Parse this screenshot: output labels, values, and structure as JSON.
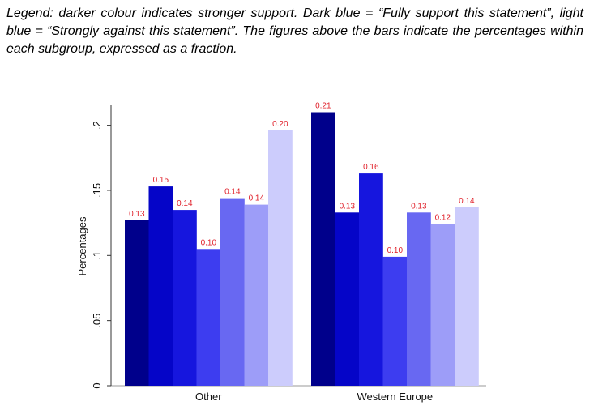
{
  "legend_note": "Legend: darker colour indicates stronger support. Dark blue = “Fully support this statement”, light blue = “Strongly against this statement”. The figures above the bars indicate the percentages within each subgroup, expressed as a fraction.",
  "chart_data": {
    "type": "bar",
    "ylabel": "Percentages",
    "ylim": [
      0,
      0.22
    ],
    "yticks": [
      {
        "value": 0,
        "label": "0"
      },
      {
        "value": 0.05,
        "label": ".05"
      },
      {
        "value": 0.1,
        "label": ".1"
      },
      {
        "value": 0.15,
        "label": ".15"
      },
      {
        "value": 0.2,
        "label": ".2"
      }
    ],
    "grid": false,
    "categories": [
      "Other",
      "Western Europe"
    ],
    "colors": [
      "#00008b",
      "#0505c8",
      "#1616de",
      "#3d3df0",
      "#6868f2",
      "#9d9df8",
      "#ccccfc"
    ],
    "groups": [
      {
        "category": "Other",
        "values": [
          0.127,
          0.153,
          0.135,
          0.105,
          0.144,
          0.139,
          0.196
        ],
        "labels": [
          "0.13",
          "0.15",
          "0.14",
          "0.10",
          "0.14",
          "0.14",
          "0.20"
        ]
      },
      {
        "category": "Western Europe",
        "values": [
          0.21,
          0.133,
          0.163,
          0.099,
          0.133,
          0.124,
          0.137
        ],
        "labels": [
          "0.21",
          "0.13",
          "0.16",
          "0.10",
          "0.13",
          "0.12",
          "0.14"
        ]
      }
    ]
  }
}
